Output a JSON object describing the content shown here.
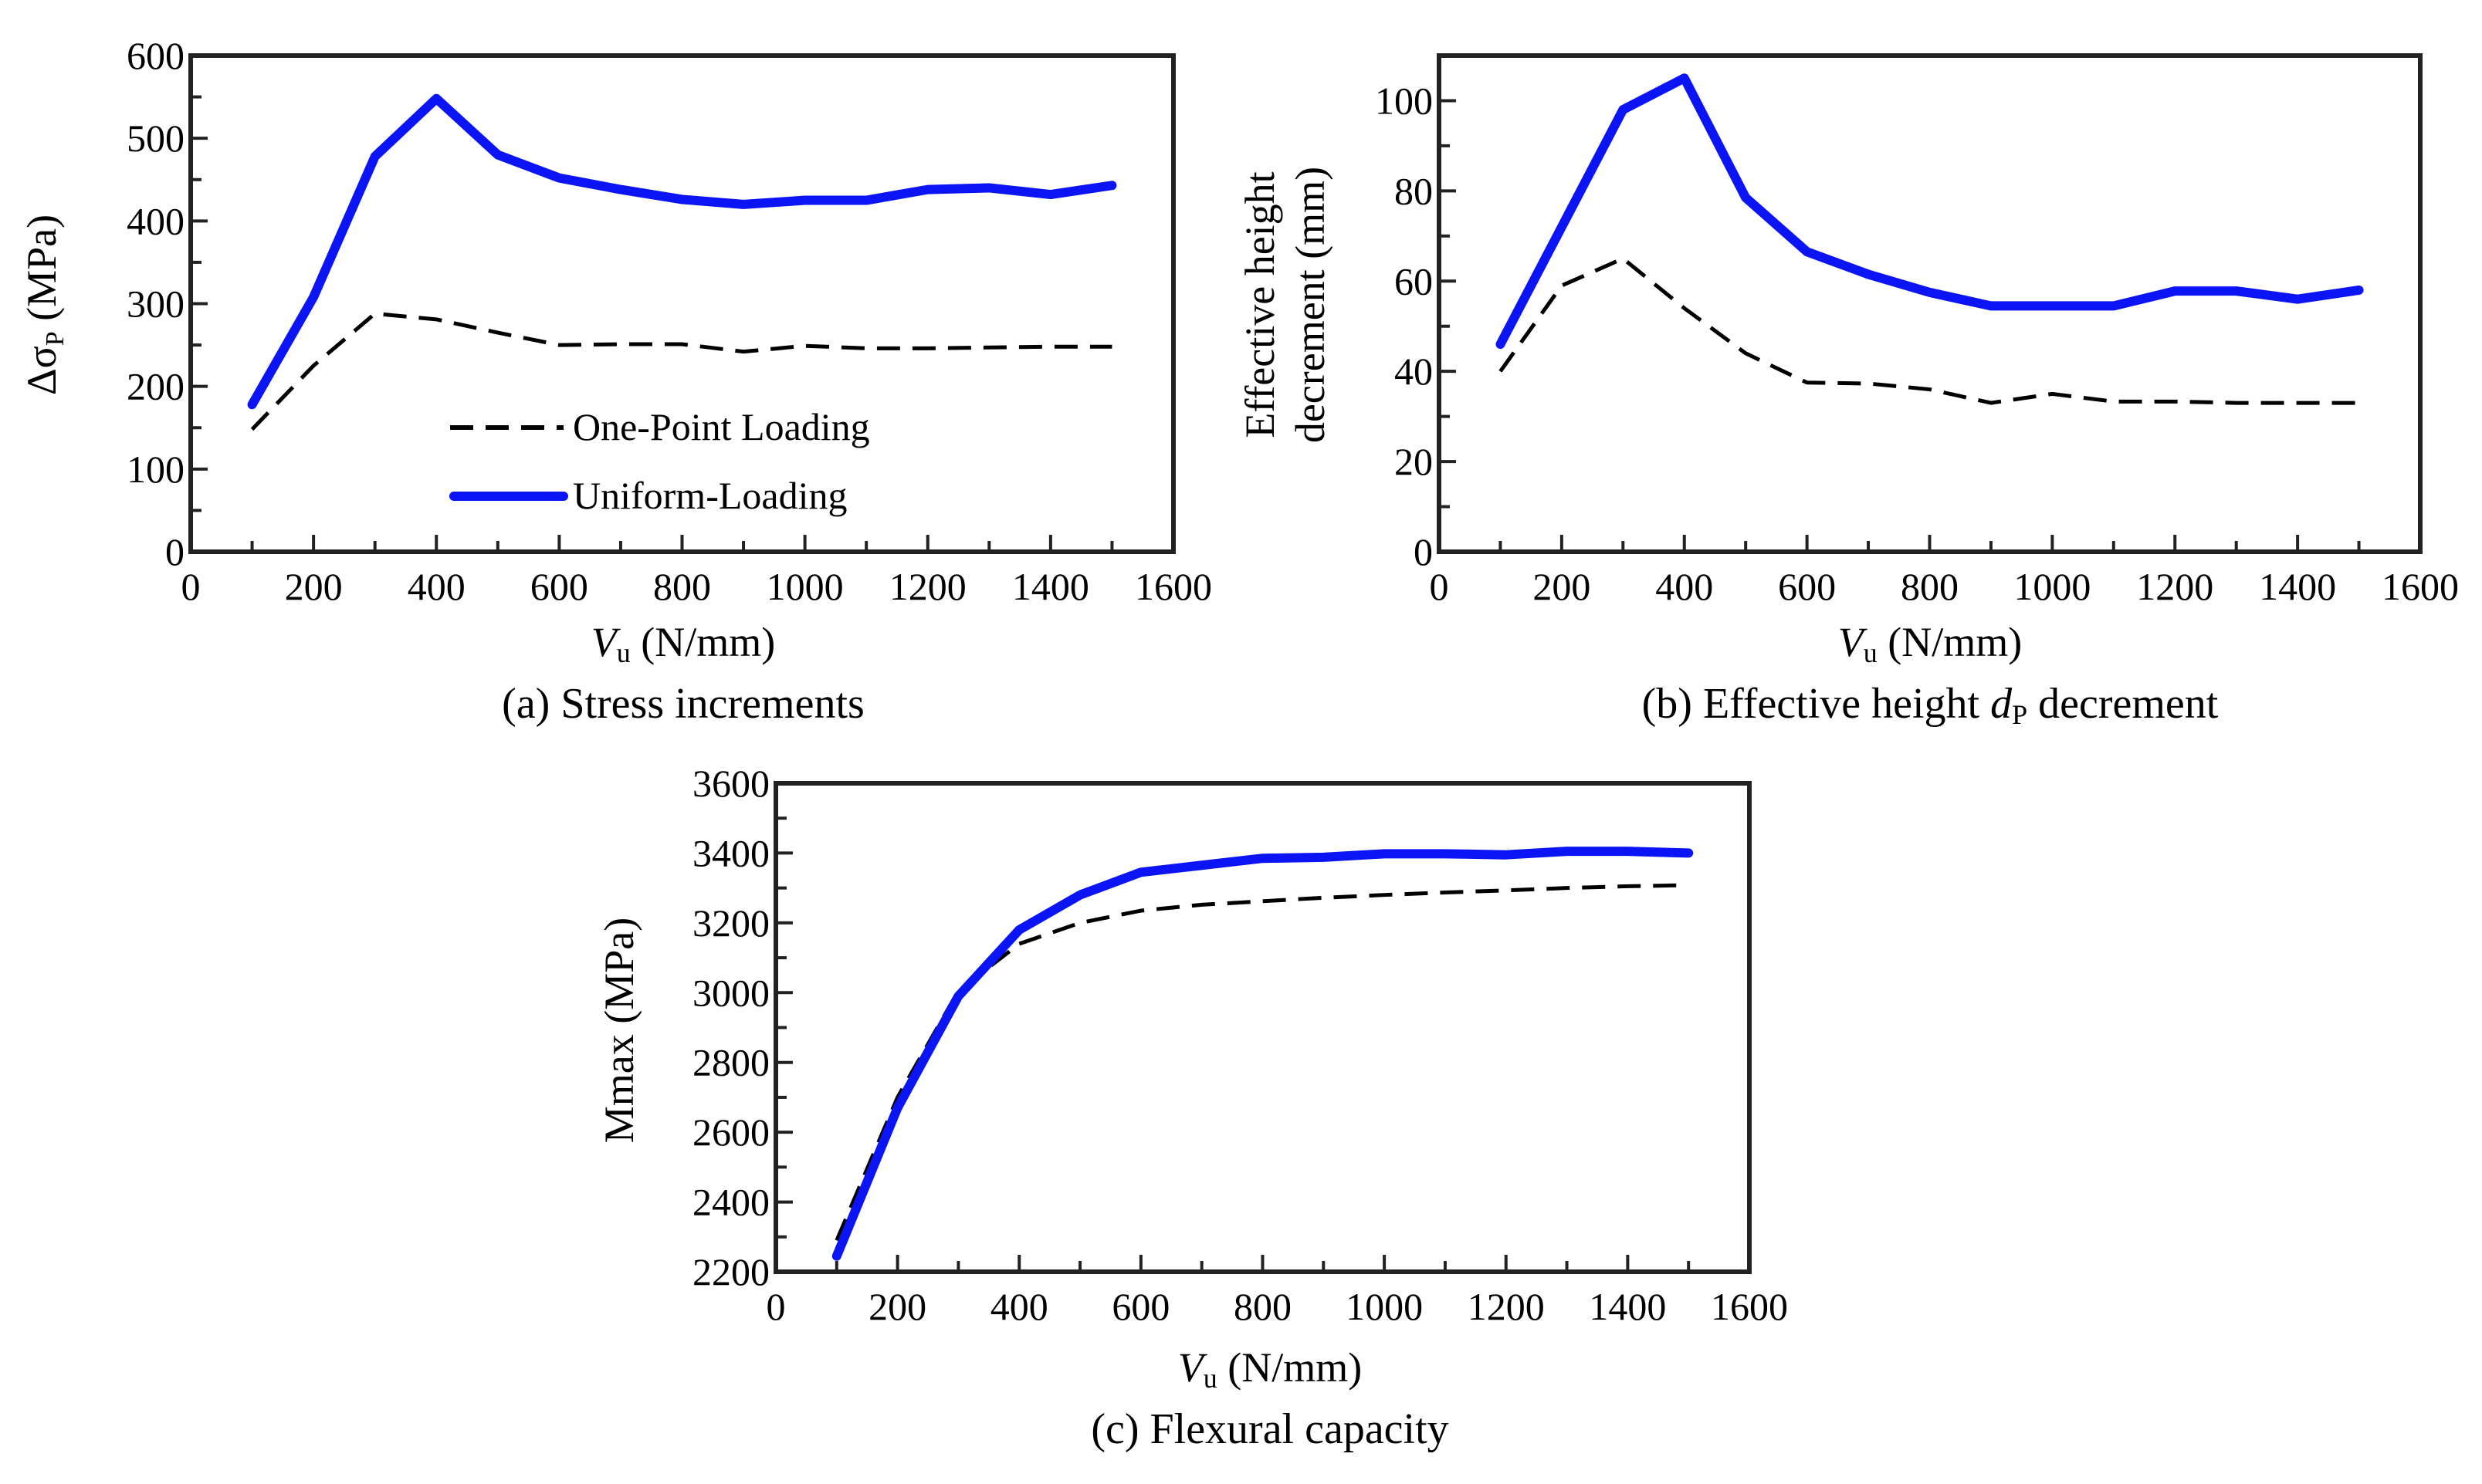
{
  "colors": {
    "uniform": "#0a14f5",
    "one_point": "#000000",
    "axis": "#222222"
  },
  "chart_data": [
    {
      "type": "line",
      "caption": "(a) Stress increments",
      "ylabel": {
        "prefix": "Δσ",
        "sub": "P",
        "suffix": " (MPa)"
      },
      "xlabel": {
        "var": "V",
        "sub": "u",
        "suffix": " (N/mm)"
      },
      "xlim": [
        0,
        1600
      ],
      "ylim": [
        0,
        600
      ],
      "xticks": [
        "0",
        "200",
        "400",
        "600",
        "800",
        "1000",
        "1200",
        "1400",
        "1600"
      ],
      "yticks": [
        "0",
        "100",
        "200",
        "300",
        "400",
        "500",
        "600"
      ],
      "legend": {
        "placement": "bottom-center",
        "entries": [
          "One-Point Loading",
          "Uniform-Loading"
        ]
      },
      "x": [
        100,
        200,
        300,
        400,
        500,
        600,
        700,
        800,
        900,
        1000,
        1100,
        1200,
        1300,
        1400,
        1500
      ],
      "series": [
        {
          "name": "One-Point Loading",
          "style": "dashed",
          "values": [
            148,
            225,
            288,
            281,
            265,
            250,
            251,
            251,
            242,
            249,
            246,
            246,
            247,
            248,
            248
          ]
        },
        {
          "name": "Uniform-Loading",
          "style": "solid",
          "values": [
            178,
            308,
            478,
            548,
            480,
            452,
            438,
            426,
            420,
            425,
            425,
            438,
            440,
            432,
            443
          ]
        }
      ]
    },
    {
      "type": "line",
      "caption_pre": "(b) Effective height ",
      "caption_var": "d",
      "caption_sub": "P",
      "caption_post": " decrement",
      "ylabel": {
        "line1": "Effective height",
        "line2": "decrement (mm)"
      },
      "xlabel": {
        "var": "V",
        "sub": "u",
        "suffix": " (N/mm)"
      },
      "xlim": [
        0,
        1600
      ],
      "ylim": [
        0,
        110
      ],
      "xticks": [
        "0",
        "200",
        "400",
        "600",
        "800",
        "1000",
        "1200",
        "1400",
        "1600"
      ],
      "yticks": [
        "0",
        "20",
        "40",
        "60",
        "80",
        "100"
      ],
      "x": [
        100,
        200,
        300,
        400,
        500,
        600,
        700,
        800,
        900,
        1000,
        1100,
        1200,
        1300,
        1400,
        1500
      ],
      "series": [
        {
          "name": "One-Point Loading",
          "style": "dashed",
          "values": [
            40,
            59,
            65,
            54,
            44,
            37.5,
            37.3,
            36,
            33,
            35,
            33.3,
            33.3,
            33,
            33,
            33
          ]
        },
        {
          "name": "Uniform-Loading",
          "style": "solid",
          "values": [
            46,
            72,
            98,
            105,
            78.5,
            66.5,
            61.5,
            57.5,
            54.5,
            54.5,
            54.5,
            57.8,
            57.8,
            56,
            58
          ]
        }
      ]
    },
    {
      "type": "line",
      "caption": "(c) Flexural capacity",
      "ylabel": {
        "text": "Mmax (MPa)"
      },
      "xlabel": {
        "var": "V",
        "sub": "u",
        "suffix": " (N/mm)"
      },
      "xlim": [
        0,
        1600
      ],
      "ylim": [
        2200,
        3600
      ],
      "xticks": [
        "0",
        "200",
        "400",
        "600",
        "800",
        "1000",
        "1200",
        "1400",
        "1600"
      ],
      "yticks": [
        "2200",
        "2400",
        "2600",
        "2800",
        "3000",
        "3200",
        "3400",
        "3600"
      ],
      "x": [
        100,
        200,
        300,
        400,
        500,
        600,
        700,
        800,
        900,
        1000,
        1100,
        1200,
        1300,
        1400,
        1500
      ],
      "series": [
        {
          "name": "One-Point Loading",
          "style": "dashed",
          "values": [
            2290,
            2700,
            3005,
            3140,
            3200,
            3235,
            3252,
            3262,
            3272,
            3280,
            3287,
            3293,
            3300,
            3305,
            3308
          ]
        },
        {
          "name": "Uniform-Loading",
          "style": "solid",
          "values": [
            2245,
            2670,
            2990,
            3180,
            3280,
            3345,
            3365,
            3385,
            3388,
            3398,
            3398,
            3395,
            3405,
            3405,
            3400
          ]
        }
      ]
    }
  ]
}
